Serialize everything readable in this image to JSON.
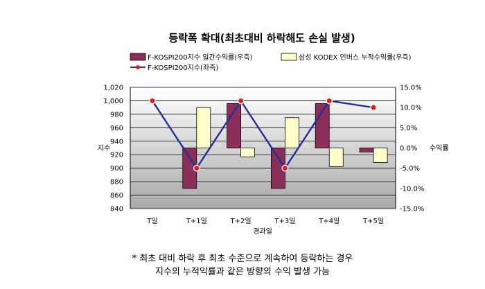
{
  "chart_data": {
    "type": "bar+line",
    "title": "등락폭 확대(최초대비 하락해도 손실 발생)",
    "xlabel": "경과일",
    "ylabel_left": "지수",
    "ylabel_right": "수익률",
    "categories": [
      "T일",
      "T+1일",
      "T+2일",
      "T+3일",
      "T+4일",
      "T+5일"
    ],
    "ylim_left": [
      840,
      1020
    ],
    "yticks_left": [
      "840",
      "860",
      "880",
      "900",
      "920",
      "940",
      "960",
      "980",
      "1,000",
      "1,020"
    ],
    "ylim_right": [
      -15,
      15
    ],
    "yticks_right": [
      "-15.0%",
      "-10.0%",
      "-5.0%",
      "0.0%",
      "5.0%",
      "10.0%",
      "15.0%"
    ],
    "series": [
      {
        "name": "F-KOSPI200지수 일간수익률(우측)",
        "kind": "bar",
        "axis": "right",
        "color": "#8B2F5A",
        "values": [
          null,
          -10.0,
          11.0,
          -10.0,
          11.0,
          -1.0
        ]
      },
      {
        "name": "삼성 KODEX 인버스 누적수익률(우측)",
        "kind": "bar",
        "axis": "right",
        "color": "#FFFFCC",
        "values": [
          null,
          10.0,
          -2.2,
          7.5,
          -4.6,
          -3.6
        ]
      },
      {
        "name": "F-KOSPI200지수(좌측)",
        "kind": "line",
        "axis": "left",
        "color": "#1F2F99",
        "marker_color": "#E21B1B",
        "values": [
          1000,
          900,
          1000,
          900,
          1000,
          990
        ]
      }
    ],
    "legend_position": "top",
    "grid": true
  },
  "notes": [
    "* 최초 대비 하락 후 최초 수준으로 계속하여 등락하는 경우",
    "지수의 누적익률과 같은 방향의 수익 발생 가능"
  ]
}
